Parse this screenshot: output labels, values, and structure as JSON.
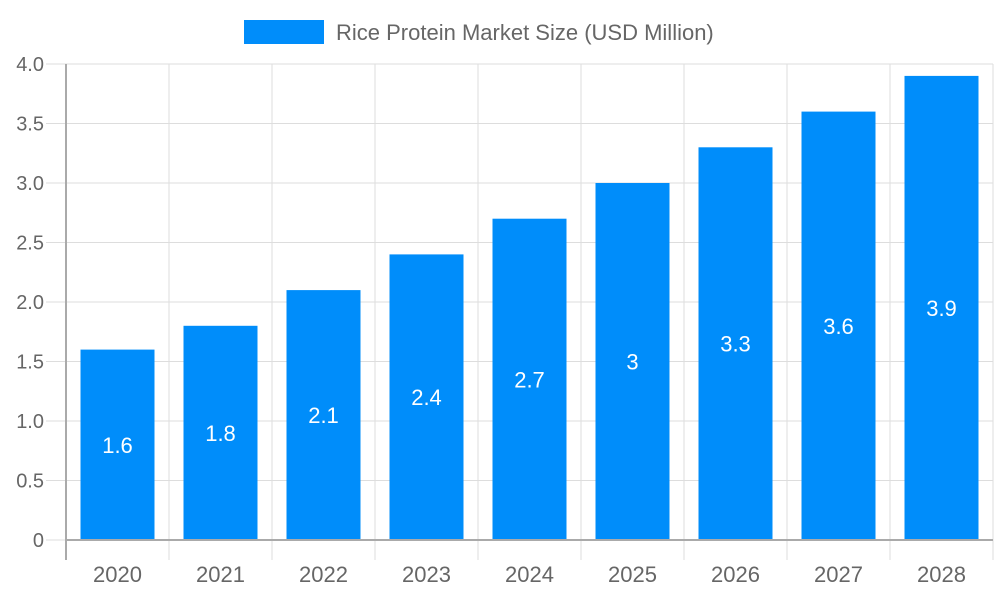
{
  "chart_data": {
    "type": "bar",
    "title": "",
    "xlabel": "",
    "ylabel": "",
    "categories": [
      "2020",
      "2021",
      "2022",
      "2023",
      "2024",
      "2025",
      "2026",
      "2027",
      "2028"
    ],
    "series": [
      {
        "name": "Rice Protein Market Size (USD Million)",
        "values": [
          1.6,
          1.8,
          2.1,
          2.4,
          2.7,
          3,
          3.3,
          3.6,
          3.9
        ],
        "color": "#008dfa"
      }
    ],
    "data_labels": [
      "1.6",
      "1.8",
      "2.1",
      "2.4",
      "2.7",
      "3",
      "3.3",
      "3.6",
      "3.9"
    ],
    "ylim": [
      0,
      4
    ],
    "yticks": [
      "0",
      "0.5",
      "1.0",
      "1.5",
      "2.0",
      "2.5",
      "3.0",
      "3.5",
      "4.0"
    ],
    "grid": true,
    "legend_position": "top"
  }
}
